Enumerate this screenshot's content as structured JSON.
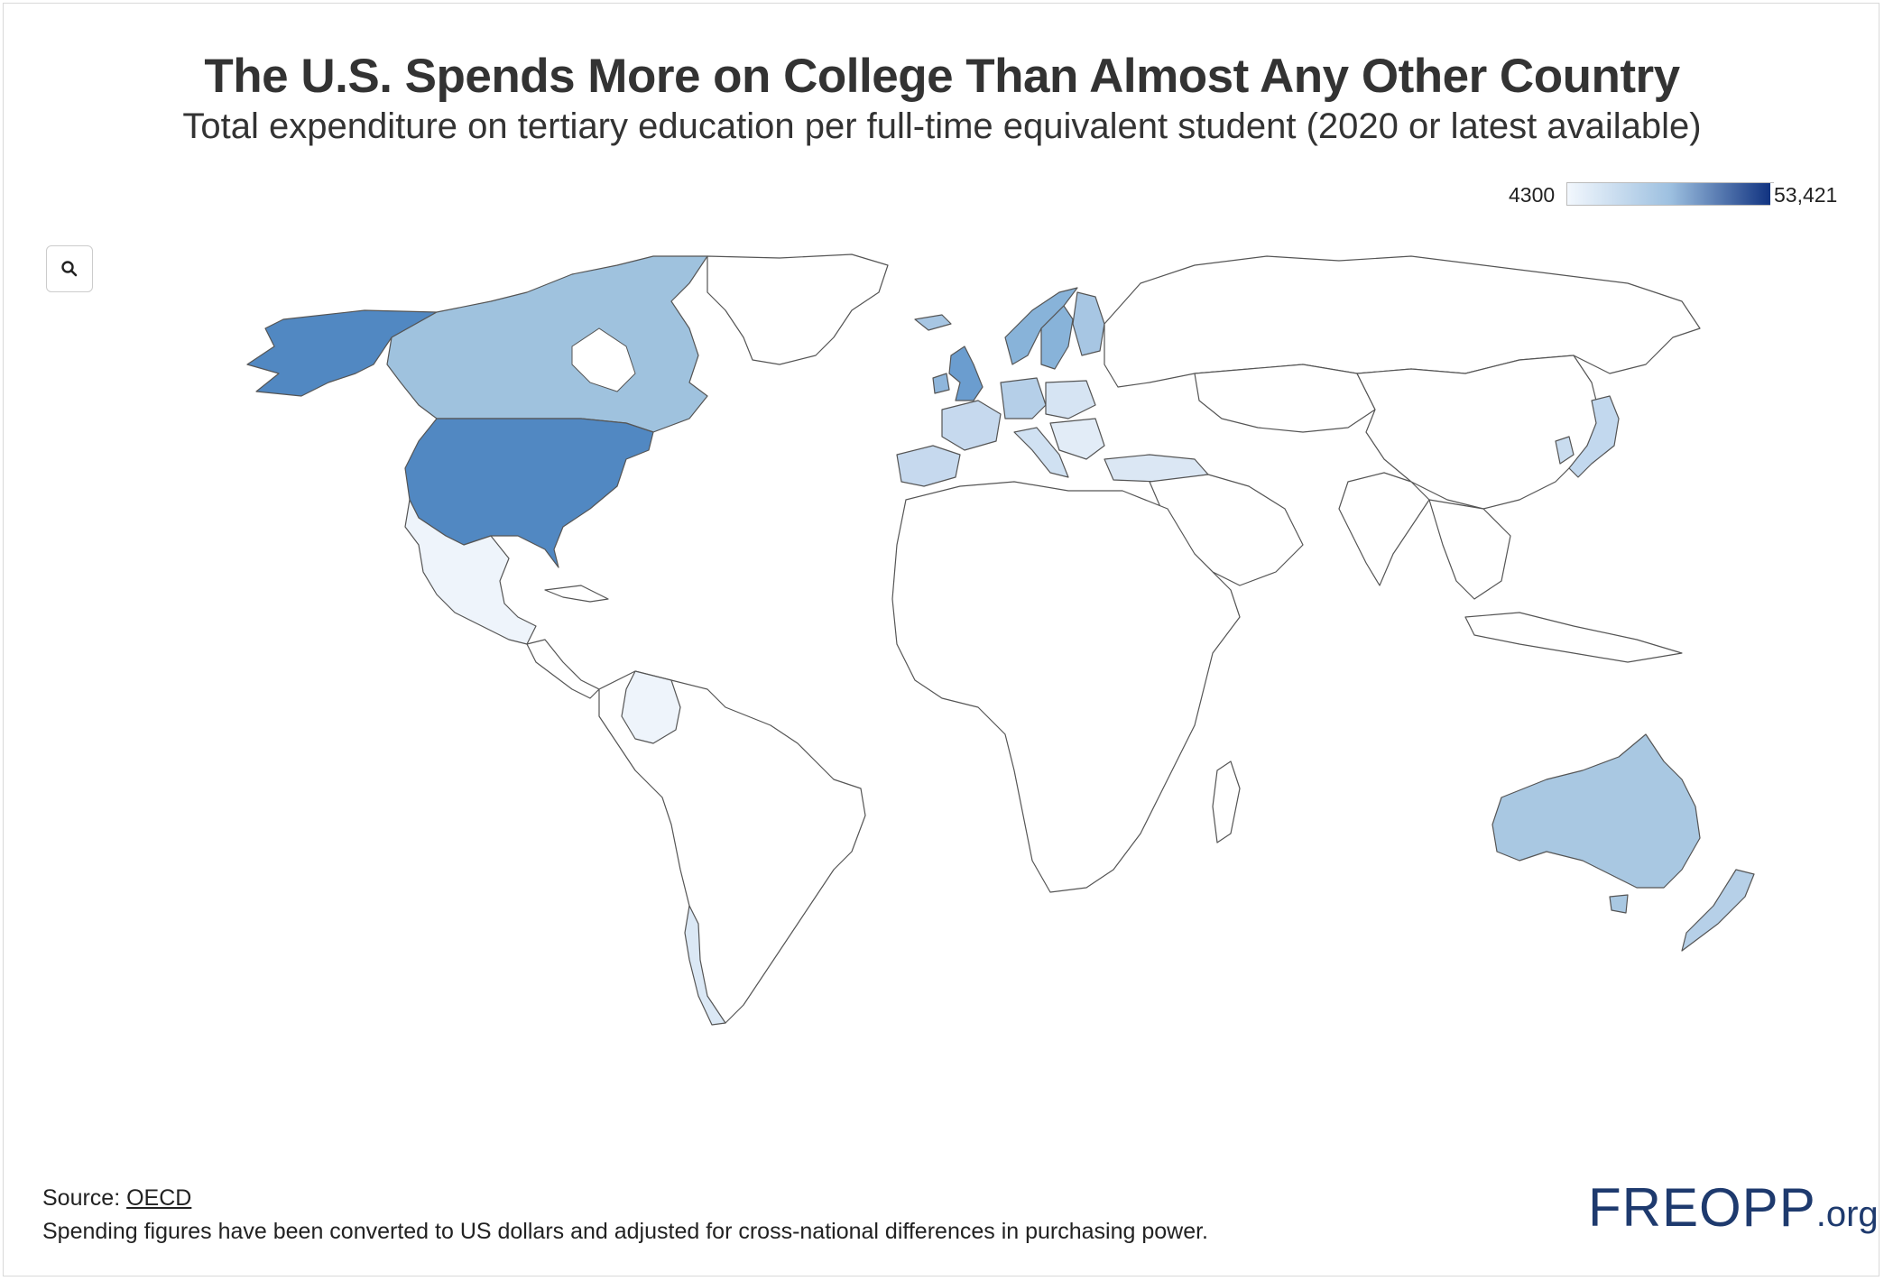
{
  "title": "The U.S. Spends More on College Than Almost Any Other Country",
  "subtitle": "Total expenditure on tertiary education per full-time equivalent student (2020 or latest available)",
  "legend": {
    "min_label": "4300",
    "max_label": "53,421",
    "min_value": 4300,
    "max_value": 53421,
    "color_low": "#f2f7fd",
    "color_high": "#0d2f7e"
  },
  "controls": {
    "zoom_icon": "search-icon"
  },
  "footer": {
    "source_prefix": "Source: ",
    "source_link": "OECD",
    "note": "Spending figures have been converted to US dollars and adjusted for cross-national differences in purchasing power."
  },
  "logo": {
    "main": "FREOPP",
    "suffix": ".org"
  },
  "colors": {
    "no_data": "#ffffff",
    "border": "#555555",
    "usa": "#5188c2",
    "canada": "#9fc2de",
    "alaska": "#5188c2",
    "uk": "#6b9dcf",
    "scandinavia": "#88b3d9",
    "australia": "#a9c8e2",
    "new_zealand": "#b6d0e8",
    "western_europe": "#c6d9ee",
    "mexico": "#eef4fb",
    "japan": "#c2d8ee"
  }
}
